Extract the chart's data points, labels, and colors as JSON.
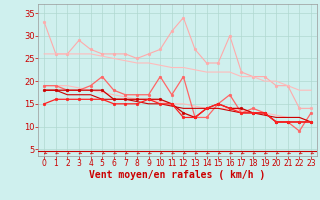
{
  "bg_color": "#cff0ee",
  "grid_color": "#b0d8d0",
  "xlabel": "Vent moyen/en rafales ( km/h )",
  "xlabel_color": "#cc0000",
  "tick_color": "#cc0000",
  "x_ticks": [
    0,
    1,
    2,
    3,
    4,
    5,
    6,
    7,
    8,
    9,
    10,
    11,
    12,
    13,
    14,
    15,
    16,
    17,
    18,
    19,
    20,
    21,
    22,
    23
  ],
  "y_ticks": [
    5,
    10,
    15,
    20,
    25,
    30,
    35
  ],
  "ylim": [
    3.5,
    37
  ],
  "xlim": [
    -0.5,
    23.5
  ],
  "series": [
    {
      "color": "#ffaaaa",
      "linewidth": 0.8,
      "marker": "o",
      "markersize": 2,
      "y": [
        33,
        26,
        26,
        29,
        27,
        26,
        26,
        26,
        25,
        26,
        27,
        31,
        34,
        27,
        24,
        24,
        30,
        22,
        21,
        21,
        19,
        19,
        14,
        14
      ]
    },
    {
      "color": "#ffbbbb",
      "linewidth": 0.8,
      "marker": null,
      "markersize": 0,
      "y": [
        26,
        26,
        26,
        26,
        26,
        25.5,
        25,
        24.5,
        24,
        24,
        23.5,
        23,
        23,
        22.5,
        22,
        22,
        22,
        21,
        21,
        20,
        20,
        19,
        18,
        18
      ]
    },
    {
      "color": "#ffbbbb",
      "linewidth": 0.8,
      "marker": null,
      "markersize": 0,
      "y": [
        19,
        19,
        19,
        18.5,
        18,
        17.5,
        17,
        16.5,
        16,
        16,
        15.5,
        15,
        15,
        14.5,
        14,
        14,
        14,
        13.5,
        13,
        13,
        12.5,
        12,
        12,
        11
      ]
    },
    {
      "color": "#ff6666",
      "linewidth": 0.9,
      "marker": "o",
      "markersize": 2,
      "y": [
        19,
        19,
        18,
        18,
        19,
        21,
        18,
        17,
        17,
        17,
        21,
        17,
        21,
        12,
        12,
        15,
        17,
        13,
        14,
        13,
        11,
        11,
        9,
        13
      ]
    },
    {
      "color": "#cc0000",
      "linewidth": 0.9,
      "marker": "o",
      "markersize": 2,
      "y": [
        18,
        18,
        18,
        18,
        18,
        18,
        16,
        16,
        16,
        16,
        16,
        15,
        13,
        12,
        14,
        15,
        14,
        14,
        13,
        13,
        11,
        11,
        11,
        11
      ]
    },
    {
      "color": "#cc0000",
      "linewidth": 0.8,
      "marker": null,
      "markersize": 0,
      "y": [
        18,
        18,
        17,
        17,
        17,
        16,
        16,
        16,
        15.5,
        15,
        15,
        14.5,
        14,
        14,
        14,
        14,
        13.5,
        13,
        13,
        12.5,
        12,
        12,
        12,
        11
      ]
    },
    {
      "color": "#ff2222",
      "linewidth": 0.9,
      "marker": "o",
      "markersize": 2,
      "y": [
        15,
        16,
        16,
        16,
        16,
        16,
        15,
        15,
        15,
        16,
        15,
        15,
        12,
        12,
        14,
        15,
        14,
        13,
        13,
        13,
        11,
        11,
        11,
        11
      ]
    }
  ],
  "axis_fontsize": 5.5,
  "label_fontsize": 7.0
}
